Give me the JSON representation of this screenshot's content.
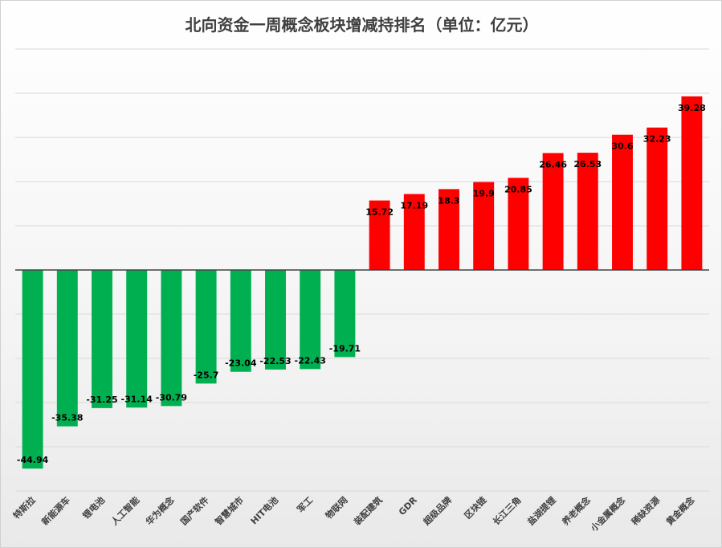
{
  "chart_data": {
    "type": "bar",
    "title": "北向资金一周概念板块增减持排名（单位：亿元）",
    "categories": [
      "特斯拉",
      "新能源车",
      "锂电池",
      "人工智能",
      "华为概念",
      "国产软件",
      "智慧城市",
      "HIT电池",
      "军工",
      "物联网",
      "装配建筑",
      "GDR",
      "超级品牌",
      "区块链",
      "长江三角",
      "盐湖提锂",
      "养老概念",
      "小金属概念",
      "稀缺资源",
      "黄金概念"
    ],
    "values": [
      -44.94,
      -35.38,
      -31.25,
      -31.14,
      -30.79,
      -25.7,
      -23.04,
      -22.53,
      -22.43,
      -19.71,
      15.72,
      17.19,
      18.3,
      19.9,
      20.85,
      26.46,
      26.53,
      30.6,
      32.23,
      39.28
    ],
    "value_labels": [
      "-44.94",
      "-35.38",
      "-31.25",
      "-31.14",
      "-30.79",
      "-25.7",
      "-23.04",
      "-22.53",
      "-22.43",
      "-19.71",
      "15.72",
      "17.19",
      "18.3",
      "19.9",
      "20.85",
      "26.46",
      "26.53",
      "30.6",
      "32.23",
      "39.28"
    ],
    "ylim": [
      -50,
      50
    ],
    "grid": true,
    "legend": "none",
    "xlabel": "",
    "ylabel": ""
  },
  "colors": {
    "positive": "#ff0000",
    "negative": "#00b050",
    "grid": "#d9d9d9",
    "axis": "#404040"
  }
}
